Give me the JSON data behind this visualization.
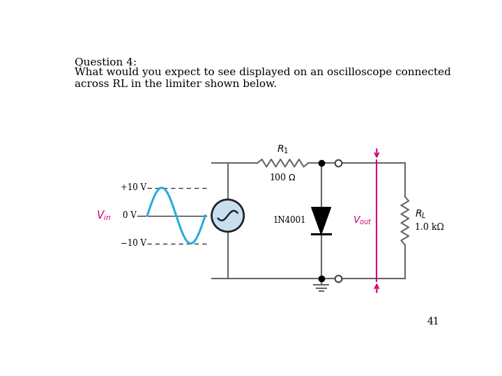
{
  "title_line1": "Question 4:",
  "title_line2": "What would you expect to see displayed on an oscilloscope connected",
  "title_line3": "across RL in the limiter shown below.",
  "page_number": "41",
  "bg_color": "#ffffff",
  "sine_color": "#29aadf",
  "magenta_color": "#cc0077",
  "dark_color": "#222222",
  "circuit_color": "#666666",
  "label_plus10": "+10 V",
  "label_0": "0 V",
  "label_minus10": "−10 V",
  "label_vin": "V_{in}",
  "label_r1": "R_1",
  "label_100ohm": "100 Ω",
  "label_1n4001": "1N4001",
  "label_vout": "V_{out}",
  "label_rl": "R_L",
  "label_1kohm": "1.0 kΩ"
}
